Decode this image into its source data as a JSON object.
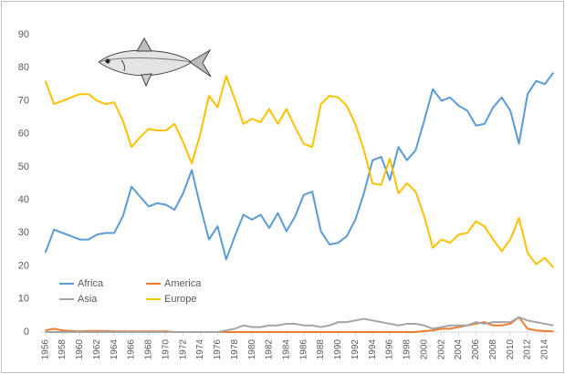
{
  "chart_data": {
    "type": "line",
    "x": [
      1956,
      1957,
      1958,
      1959,
      1960,
      1961,
      1962,
      1963,
      1964,
      1965,
      1966,
      1967,
      1968,
      1969,
      1970,
      1971,
      1972,
      1973,
      1974,
      1975,
      1976,
      1977,
      1978,
      1979,
      1980,
      1981,
      1982,
      1983,
      1984,
      1985,
      1986,
      1987,
      1988,
      1989,
      1990,
      1991,
      1992,
      1993,
      1994,
      1995,
      1996,
      1997,
      1998,
      1999,
      2000,
      2001,
      2002,
      2003,
      2004,
      2005,
      2006,
      2007,
      2008,
      2009,
      2010,
      2011,
      2012,
      2013,
      2014,
      2015
    ],
    "series": [
      {
        "name": "Africa",
        "color": "#5b9bd5",
        "values": [
          24,
          31,
          30,
          29,
          28,
          28,
          29.5,
          30,
          30,
          35,
          44,
          41,
          38,
          39,
          38.5,
          37,
          42,
          49,
          38,
          28,
          32,
          22,
          29,
          35.5,
          34,
          35.5,
          31.5,
          36,
          30.5,
          35,
          41.5,
          42.5,
          30.5,
          26.5,
          27,
          29,
          34,
          42,
          52,
          53,
          46,
          56,
          52,
          55,
          64,
          73.5,
          70,
          71,
          68.5,
          67,
          62.5,
          63,
          68,
          71,
          67,
          57,
          72,
          76,
          75,
          78.5
        ]
      },
      {
        "name": "America",
        "color": "#ed7d31",
        "values": [
          0.5,
          1,
          0.5,
          0.3,
          0.2,
          0.3,
          0.3,
          0.3,
          0.2,
          0.2,
          0.2,
          0.2,
          0.2,
          0.2,
          0.2,
          0,
          0,
          0,
          0,
          0,
          0,
          0,
          0,
          0,
          0,
          0,
          0,
          0,
          0,
          0,
          0,
          0,
          0,
          0,
          0,
          0,
          0,
          0,
          0,
          0,
          0,
          0,
          0,
          0,
          0.3,
          0.5,
          1,
          1,
          1.5,
          2,
          2.5,
          3,
          2,
          2,
          2.5,
          4.5,
          1,
          0.5,
          0.3,
          0.2
        ]
      },
      {
        "name": "Asia",
        "color": "#a5a5a5",
        "values": [
          0,
          0,
          0,
          0,
          0,
          0,
          0,
          0,
          0,
          0,
          0,
          0,
          0,
          0,
          0,
          0,
          0,
          0,
          0,
          0,
          0,
          0.5,
          1,
          2,
          1.5,
          1.5,
          2,
          2,
          2.5,
          2.5,
          2,
          2,
          1.5,
          2,
          3,
          3,
          3.5,
          4,
          3.5,
          3,
          2.5,
          2,
          2.5,
          2.5,
          2,
          1,
          1.5,
          2,
          2,
          2,
          3,
          2.5,
          3,
          3,
          3,
          4.5,
          3.5,
          3,
          2.5,
          2
        ]
      },
      {
        "name": "Europe",
        "color": "#ffc000",
        "values": [
          76,
          69,
          70,
          71,
          72,
          72,
          70,
          69,
          69.5,
          64,
          56,
          59,
          61.5,
          61,
          61,
          63,
          57.5,
          51,
          60,
          71.5,
          68,
          77.5,
          70.5,
          63,
          64.5,
          63.5,
          67.5,
          63,
          67.5,
          62,
          57,
          56,
          69,
          71.5,
          71,
          68.5,
          63,
          55,
          45,
          44.5,
          52.5,
          42,
          45,
          42.5,
          35,
          25.5,
          28,
          27,
          29.5,
          30,
          33.5,
          32,
          28,
          24.5,
          28,
          34.5,
          24,
          20.5,
          22.5,
          19.5
        ]
      }
    ],
    "xlim": [
      1955.5,
      2015.5
    ],
    "xticks": [
      1956,
      1958,
      1960,
      1962,
      1964,
      1966,
      1968,
      1970,
      1972,
      1974,
      1976,
      1978,
      1980,
      1982,
      1984,
      1986,
      1988,
      1990,
      1992,
      1994,
      1996,
      1998,
      2000,
      2002,
      2004,
      2006,
      2008,
      2010,
      2012,
      2014
    ],
    "ylim": [
      0,
      90
    ],
    "yticks": [
      0,
      10,
      20,
      30,
      40,
      50,
      60,
      70,
      80,
      90
    ],
    "grid": false,
    "legend": "lower left"
  }
}
